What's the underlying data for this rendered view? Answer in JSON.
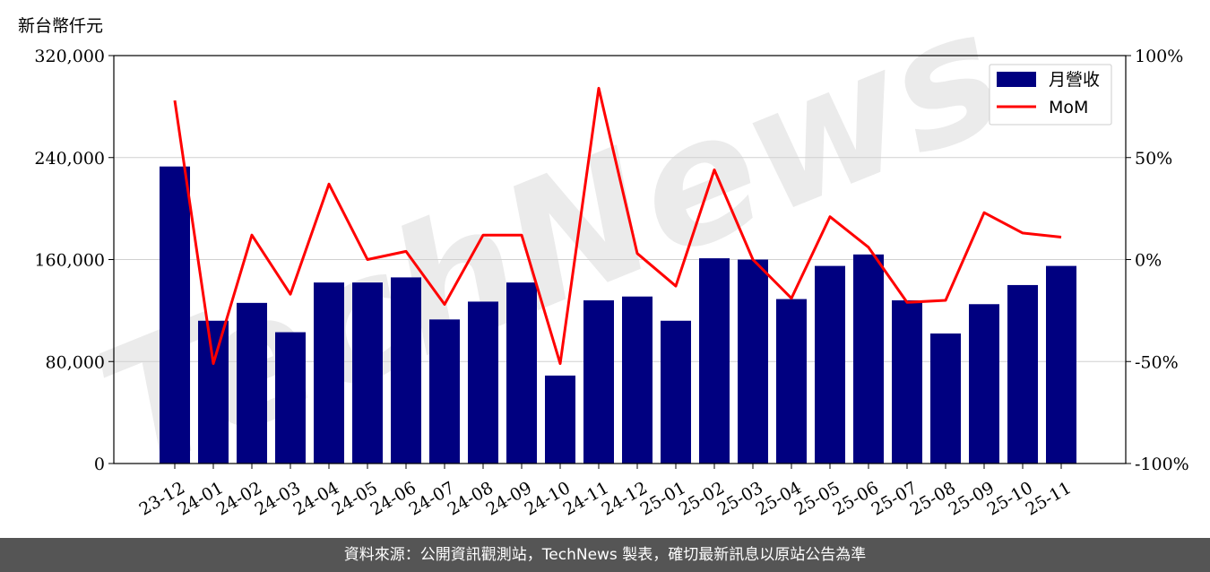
{
  "unit_label": "新台幣仟元",
  "footer_text": "資料來源：公開資訊觀測站，TechNews 製表，確切最新訊息以原站公告為準",
  "watermark": "TechNews",
  "colors": {
    "bar": "#000080",
    "line": "#ff0000",
    "grid": "#d0d0d0"
  },
  "chart_data": {
    "type": "bar",
    "categories": [
      "23-12",
      "24-01",
      "24-02",
      "24-03",
      "24-04",
      "24-05",
      "24-06",
      "24-07",
      "24-08",
      "24-09",
      "24-10",
      "24-11",
      "24-12",
      "25-01",
      "25-02",
      "25-03",
      "25-04",
      "25-05",
      "25-06",
      "25-07",
      "25-08",
      "25-09",
      "25-10",
      "25-11"
    ],
    "series": [
      {
        "name": "月營收",
        "type": "bar",
        "axis": "left",
        "values": [
          233000,
          112000,
          126000,
          103000,
          142000,
          142000,
          146000,
          113000,
          127000,
          142000,
          69000,
          128000,
          131000,
          112000,
          161000,
          160000,
          129000,
          155000,
          164000,
          128000,
          102000,
          125000,
          140000,
          155000
        ]
      },
      {
        "name": "MoM",
        "type": "line",
        "axis": "right",
        "values": [
          78,
          -51,
          12,
          -17,
          37,
          0,
          4,
          -22,
          12,
          12,
          -51,
          84,
          3,
          -13,
          44,
          0,
          -19,
          21,
          6,
          -21,
          -20,
          23,
          13,
          11
        ]
      }
    ],
    "y_left": {
      "lim": [
        0,
        320000
      ],
      "ticks": [
        0,
        80000,
        160000,
        240000,
        320000
      ],
      "tick_labels": [
        "0",
        "80,000",
        "160,000",
        "240,000",
        "320,000"
      ]
    },
    "y_right": {
      "lim": [
        -100,
        100
      ],
      "ticks": [
        -100,
        -50,
        0,
        50,
        100
      ],
      "tick_labels": [
        "-100%",
        "-50%",
        "0%",
        "50%",
        "100%"
      ]
    },
    "grid": true,
    "legend": "top-right"
  }
}
